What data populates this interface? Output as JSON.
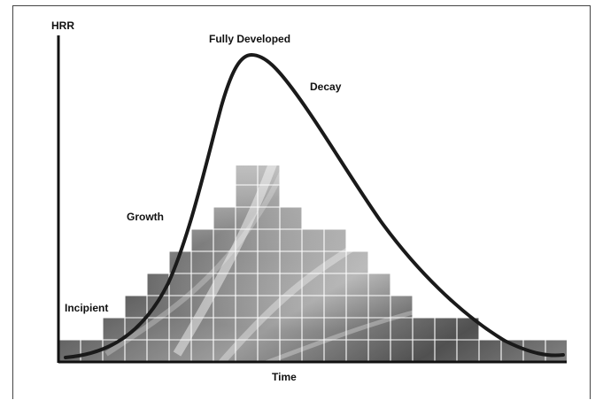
{
  "diagram": {
    "axis_y_label": "HRR",
    "axis_x_label": "Time",
    "stages": [
      "Incipient",
      "Growth",
      "Fully Developed",
      "Decay"
    ]
  },
  "colors": {
    "curve": "#1a1a1a",
    "grid": "#ffffff",
    "fill_dark": "#5a5a5a",
    "fill_light": "#d9d9d9",
    "axis": "#111111"
  }
}
